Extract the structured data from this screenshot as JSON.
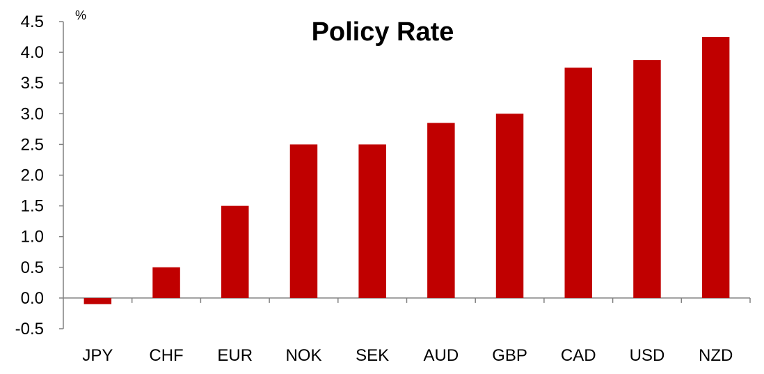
{
  "chart_data": {
    "type": "bar",
    "title": "Policy Rate",
    "ylabel": "%",
    "xlabel": "",
    "categories": [
      "JPY",
      "CHF",
      "EUR",
      "NOK",
      "SEK",
      "AUD",
      "GBP",
      "CAD",
      "USD",
      "NZD"
    ],
    "values": [
      -0.1,
      0.5,
      1.5,
      2.5,
      2.5,
      2.85,
      3.0,
      3.75,
      3.875,
      4.25
    ],
    "ylim": [
      -0.5,
      4.5
    ],
    "yticks": [
      "4.5",
      "4.0",
      "3.5",
      "3.0",
      "2.5",
      "2.0",
      "1.5",
      "1.0",
      "0.5",
      "0.0",
      "-0.5"
    ],
    "grid": false,
    "legend": "none",
    "bar_color": "#c00000",
    "axis_color": "#808080"
  }
}
